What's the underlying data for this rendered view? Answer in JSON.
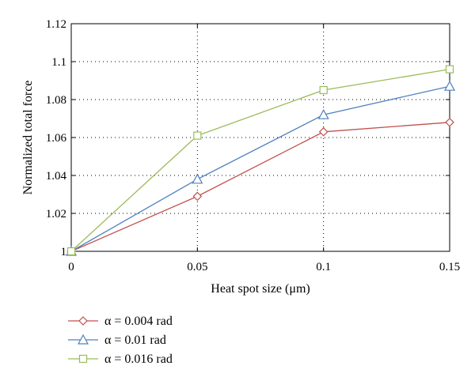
{
  "chart_data": {
    "type": "line",
    "xlabel": "Heat spot size (μm)",
    "ylabel": "Normalized total force",
    "x": [
      0,
      0.05,
      0.1,
      0.15
    ],
    "xlim": [
      0,
      0.15
    ],
    "ylim": [
      1,
      1.12
    ],
    "xticks": [
      "0",
      "0.05",
      "0.1",
      "0.15"
    ],
    "yticks": [
      "1",
      "1.02",
      "1.04",
      "1.06",
      "1.08",
      "1.1",
      "1.12"
    ],
    "grid": "dotted",
    "legend_position": "below",
    "series": [
      {
        "name": "α = 0.004 rad",
        "marker": "diamond",
        "color": "#c0504d",
        "values": [
          1.0,
          1.029,
          1.063,
          1.068
        ]
      },
      {
        "name": "α = 0.01 rad",
        "marker": "triangle",
        "color": "#4f81bd",
        "values": [
          1.0,
          1.038,
          1.072,
          1.087
        ]
      },
      {
        "name": "α = 0.016 rad",
        "marker": "square",
        "color": "#9bbb59",
        "values": [
          1.0,
          1.061,
          1.085,
          1.096
        ]
      }
    ]
  }
}
